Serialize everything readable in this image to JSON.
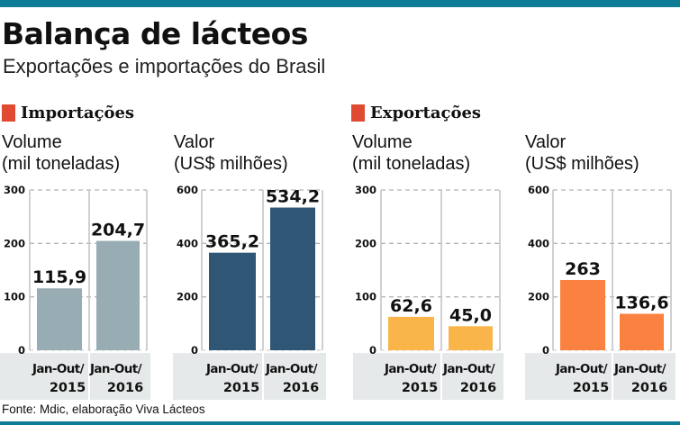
{
  "title": "Balança de lácteos",
  "subtitle": "Exportações e importações do Brasil",
  "source": "Fonte: Mdic, elaboração Viva Lácteos",
  "sections": [
    {
      "label": "Importações",
      "color": "#e04a32"
    },
    {
      "label": "Exportações",
      "color": "#e04a32"
    }
  ],
  "colors": {
    "bar_import_volume": "#98adb3",
    "bar_import_value": "#2f5674",
    "bar_export_volume": "#f9b54a",
    "bar_export_value": "#fa8140",
    "band": "#e6e9ea",
    "top_bar": "#0e7c96"
  },
  "chart_data": [
    {
      "type": "bar",
      "group": "Importações",
      "title": "Volume",
      "unit": "(mil toneladas)",
      "categories": [
        "Jan-Out/ 2015",
        "Jan-Out/ 2016"
      ],
      "category_lines": [
        [
          "Jan-Out/",
          "2015"
        ],
        [
          "Jan-Out/",
          "2016"
        ]
      ],
      "values": [
        115.9,
        204.7
      ],
      "value_labels": [
        "115,9",
        "204,7"
      ],
      "ylim": [
        0,
        300
      ],
      "yticks": [
        0,
        100,
        200,
        300
      ],
      "ytick_labels": [
        "0",
        "100",
        "200",
        "300"
      ],
      "grid": true
    },
    {
      "type": "bar",
      "group": "Importações",
      "title": "Valor",
      "unit": "(US$ milhões)",
      "categories": [
        "Jan-Out/ 2015",
        "Jan-Out/ 2016"
      ],
      "category_lines": [
        [
          "Jan-Out/",
          "2015"
        ],
        [
          "Jan-Out/",
          "2016"
        ]
      ],
      "values": [
        365.2,
        534.2
      ],
      "value_labels": [
        "365,2",
        "534,2"
      ],
      "ylim": [
        0,
        600
      ],
      "yticks": [
        0,
        200,
        400,
        600
      ],
      "ytick_labels": [
        "0",
        "200",
        "400",
        "600"
      ],
      "grid": true
    },
    {
      "type": "bar",
      "group": "Exportações",
      "title": "Volume",
      "unit": "(mil toneladas)",
      "categories": [
        "Jan-Out/ 2015",
        "Jan-Out/ 2016"
      ],
      "category_lines": [
        [
          "Jan-Out/",
          "2015"
        ],
        [
          "Jan-Out/",
          "2016"
        ]
      ],
      "values": [
        62.6,
        45.0
      ],
      "value_labels": [
        "62,6",
        "45,0"
      ],
      "ylim": [
        0,
        300
      ],
      "yticks": [
        0,
        100,
        200,
        300
      ],
      "ytick_labels": [
        "0",
        "100",
        "200",
        "300"
      ],
      "grid": true
    },
    {
      "type": "bar",
      "group": "Exportações",
      "title": "Valor",
      "unit": "(US$ milhões)",
      "categories": [
        "Jan-Out/ 2015",
        "Jan-Out/ 2016"
      ],
      "category_lines": [
        [
          "Jan-Out/",
          "2015"
        ],
        [
          "Jan-Out/",
          "2016"
        ]
      ],
      "values": [
        263,
        136.6
      ],
      "value_labels": [
        "263",
        "136,6"
      ],
      "ylim": [
        0,
        600
      ],
      "yticks": [
        0,
        200,
        400,
        600
      ],
      "ytick_labels": [
        "0",
        "200",
        "400",
        "600"
      ],
      "grid": true
    }
  ]
}
